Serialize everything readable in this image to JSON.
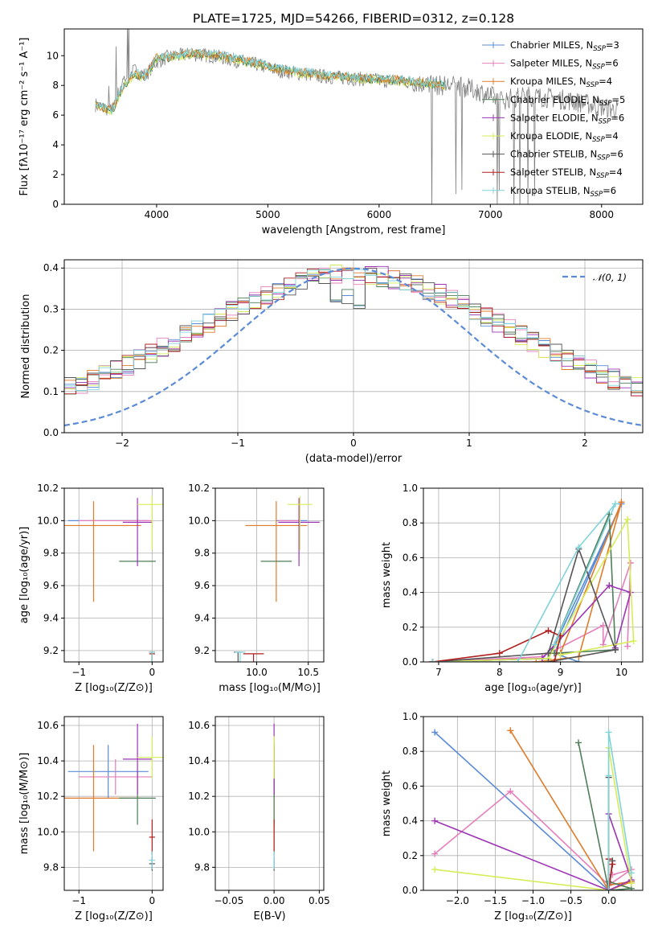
{
  "title": "PLATE=1725, MJD=54266, FIBERID=0312, z=0.128",
  "colors": {
    "Chabrier MILES": "#5b8bd6",
    "Salpeter MILES": "#e57fbc",
    "Kroupa MILES": "#e07b2a",
    "Chabrier ELODIE": "#4e7d57",
    "Salpeter ELODIE": "#9b35b4",
    "Kroupa ELODIE": "#d6ec59",
    "Chabrier STELIB": "#555555",
    "Salpeter STELIB": "#b01f1f",
    "Kroupa STELIB": "#7fd3d9",
    "data": "#808080",
    "normal": "#5b8bd6"
  },
  "chart_data": [
    {
      "id": "spectrum",
      "type": "line",
      "xlabel": "wavelength [Angstrom, rest frame]",
      "ylabel": "Flux [fλ10⁻¹⁷ erg cm⁻² s⁻¹ A⁻¹]",
      "xlim": [
        3170,
        8370
      ],
      "ylim": [
        0,
        11.8
      ],
      "xticks": [
        4000,
        5000,
        6000,
        7000,
        8000
      ],
      "yticks": [
        0,
        2,
        4,
        6,
        8,
        10
      ],
      "legend": "top-right",
      "legend_entries": [
        {
          "main": "Chabrier MILES, N",
          "sub": "SSP",
          "tail": "=3"
        },
        {
          "main": "Salpeter MILES, N",
          "sub": "SSP",
          "tail": "=6"
        },
        {
          "main": "Kroupa MILES, N",
          "sub": "SSP",
          "tail": "=4"
        },
        {
          "main": "Chabrier ELODIE, N",
          "sub": "SSP",
          "tail": "=5"
        },
        {
          "main": "Salpeter ELODIE, N",
          "sub": "SSP",
          "tail": "=6"
        },
        {
          "main": "Kroupa ELODIE, N",
          "sub": "SSP",
          "tail": "=4"
        },
        {
          "main": "Chabrier STELIB, N",
          "sub": "SSP",
          "tail": "=6"
        },
        {
          "main": "Salpeter STELIB, N",
          "sub": "SSP",
          "tail": "=4"
        },
        {
          "main": "Kroupa STELIB, N",
          "sub": "SSP",
          "tail": "=6"
        }
      ],
      "data_continuum": {
        "x": [
          3450,
          3600,
          3700,
          3800,
          3900,
          4000,
          4100,
          4300,
          4500,
          4700,
          4900,
          5100,
          5300,
          5500,
          5700,
          5900,
          6100,
          6300,
          6500,
          6700,
          6900,
          7100,
          7300,
          7500,
          7700,
          7900,
          8100
        ],
        "y": [
          6.7,
          6.3,
          8.4,
          9.0,
          8.7,
          9.6,
          9.9,
          10.1,
          10.0,
          9.7,
          9.4,
          9.0,
          8.8,
          8.6,
          8.5,
          8.4,
          8.3,
          8.2,
          8.0,
          8.0,
          7.6,
          7.0,
          7.3,
          7.2,
          7.0,
          6.7,
          6.4
        ]
      },
      "model_continuum": {
        "x": [
          3450,
          3600,
          3700,
          3800,
          3900,
          4000,
          4100,
          4300,
          4500,
          4700,
          4900,
          5100,
          5300,
          5500,
          5700,
          5900,
          6100,
          6300,
          6500,
          6600
        ],
        "y": [
          6.6,
          6.2,
          7.9,
          8.7,
          8.5,
          9.8,
          9.8,
          10.1,
          10.0,
          9.7,
          9.4,
          9.0,
          8.8,
          8.6,
          8.5,
          8.4,
          8.3,
          8.2,
          8.0,
          8.0
        ]
      }
    },
    {
      "id": "residuals",
      "type": "histogram",
      "xlabel": "(data-model)/error",
      "ylabel": "Normed distribution",
      "xlim": [
        -2.5,
        2.5
      ],
      "ylim": [
        0,
        0.42
      ],
      "xticks": [
        -2,
        -1,
        0,
        1,
        2
      ],
      "yticks": [
        0.0,
        0.1,
        0.2,
        0.3,
        0.4
      ],
      "legend": "top-right",
      "legend_label": "𝒩(0, 1)",
      "bin_width": 0.1
    },
    {
      "id": "age-vs-Z",
      "type": "scatter",
      "xlabel": "Z [log₁₀(Z/Z⊙)]",
      "ylabel": "age  [log₁₀(age/yr)]",
      "xlim": [
        -1.2,
        0.15
      ],
      "ylim": [
        9.13,
        10.2
      ],
      "xticks": [
        -1,
        0
      ],
      "yticks": [
        9.2,
        9.4,
        9.6,
        9.8,
        10.0,
        10.2
      ]
    },
    {
      "id": "age-vs-mass",
      "type": "scatter",
      "xlabel": "mass [log₁₀(M/M⊙)]",
      "xlim": [
        9.6,
        10.65
      ],
      "ylim": [
        9.13,
        10.2
      ],
      "xticks": [
        10.0,
        10.5
      ],
      "yticks": [
        9.2,
        9.4,
        9.6,
        9.8,
        10.0,
        10.2
      ]
    },
    {
      "id": "weight-vs-age",
      "type": "line",
      "xlabel": "age  [log₁₀(age/yr)]",
      "ylabel": "mass weight",
      "xlim": [
        6.75,
        10.35
      ],
      "ylim": [
        0,
        1.0
      ],
      "xticks": [
        7,
        8,
        9,
        10
      ],
      "yticks": [
        0.0,
        0.2,
        0.4,
        0.6,
        0.8,
        1.0
      ]
    },
    {
      "id": "mass-vs-Z",
      "type": "scatter",
      "xlabel": "Z [log₁₀(Z/Z⊙)]",
      "ylabel": "mass [log₁₀(M/M⊙)]",
      "xlim": [
        -1.2,
        0.15
      ],
      "ylim": [
        9.67,
        10.65
      ],
      "xticks": [
        -1,
        0
      ],
      "yticks": [
        9.8,
        10.0,
        10.2,
        10.4,
        10.6
      ]
    },
    {
      "id": "mass-vs-EBV",
      "type": "scatter",
      "xlabel": "E(B-V)",
      "xlim": [
        -0.065,
        0.055
      ],
      "ylim": [
        9.67,
        10.65
      ],
      "xticks": [
        -0.05,
        0.0,
        0.05
      ],
      "yticks": [
        9.8,
        10.0,
        10.2,
        10.4,
        10.6
      ]
    },
    {
      "id": "weight-vs-Z",
      "type": "line",
      "xlabel": "Z [log₁₀(Z/Z⊙)]",
      "ylabel": "mass weight",
      "xlim": [
        -2.45,
        0.45
      ],
      "ylim": [
        0,
        1.0
      ],
      "xticks": [
        -2.0,
        -1.5,
        -1.0,
        -0.5,
        0.0
      ],
      "yticks": [
        0.0,
        0.2,
        0.4,
        0.6,
        0.8,
        1.0
      ]
    }
  ],
  "fits": [
    {
      "name": "Chabrier MILES",
      "age": 10.0,
      "age_err": [
        0.0,
        0.0
      ],
      "Z": -0.6,
      "Z_err": 0.55,
      "mass": 10.34,
      "mass_err": 0.15,
      "ebv": 0.0,
      "age_w": [
        [
          6.9,
          0.0
        ],
        [
          8.8,
          0.02
        ],
        [
          10.0,
          0.91
        ],
        [
          8.9,
          0.05
        ],
        [
          9.3,
          0.0
        ]
      ],
      "Z_w": [
        [
          -2.3,
          0.91
        ],
        [
          0.0,
          0.0
        ],
        [
          0.3,
          0.05
        ],
        [
          0.0,
          0.03
        ]
      ]
    },
    {
      "name": "Salpeter MILES",
      "age": 10.0,
      "age_err": [
        0.0,
        0.0
      ],
      "Z": -0.5,
      "Z_err": 0.5,
      "mass": 10.31,
      "mass_err": 0.1,
      "ebv": 0.0,
      "age_w": [
        [
          6.9,
          0.0
        ],
        [
          8.7,
          0.03
        ],
        [
          9.7,
          0.21
        ],
        [
          9.7,
          0.1
        ],
        [
          10.15,
          0.57
        ],
        [
          10.1,
          0.09
        ]
      ],
      "Z_w": [
        [
          -2.3,
          0.21
        ],
        [
          -1.3,
          0.57
        ],
        [
          0.0,
          0.03
        ],
        [
          0.3,
          0.12
        ],
        [
          0.05,
          0.09
        ]
      ]
    },
    {
      "name": "Kroupa MILES",
      "age": 9.97,
      "age_err": [
        0.47,
        0.15
      ],
      "Z": -0.8,
      "Z_err": 0.65,
      "mass": 10.19,
      "mass_err": 0.3,
      "ebv": 0.0,
      "age_w": [
        [
          6.9,
          0.0
        ],
        [
          8.6,
          0.0
        ],
        [
          9.3,
          0.03
        ],
        [
          10.0,
          0.92
        ],
        [
          9.0,
          0.05
        ]
      ],
      "Z_w": [
        [
          -1.3,
          0.92
        ],
        [
          0.0,
          0.0
        ],
        [
          0.3,
          0.05
        ],
        [
          0.0,
          0.03
        ]
      ]
    },
    {
      "name": "Chabrier ELODIE",
      "age": 9.75,
      "age_err": [
        0.0,
        0.0
      ],
      "Z": -0.2,
      "Z_err": 0.25,
      "mass": 10.19,
      "mass_err": 0.15,
      "ebv": 0.0,
      "age_w": [
        [
          6.9,
          0.0
        ],
        [
          8.8,
          0.02
        ],
        [
          9.8,
          0.85
        ],
        [
          9.9,
          0.07
        ],
        [
          8.9,
          0.05
        ]
      ],
      "Z_w": [
        [
          -0.4,
          0.85
        ],
        [
          0.0,
          0.0
        ],
        [
          0.3,
          0.01
        ],
        [
          0.0,
          0.05
        ]
      ]
    },
    {
      "name": "Salpeter ELODIE",
      "age": 9.99,
      "age_err": [
        0.27,
        0.15
      ],
      "Z": -0.2,
      "Z_err": 0.2,
      "mass": 10.41,
      "mass_err": 0.2,
      "ebv": 0.0,
      "age_w": [
        [
          6.9,
          0.0
        ],
        [
          8.7,
          0.02
        ],
        [
          9.8,
          0.44
        ],
        [
          10.15,
          0.4
        ],
        [
          9.9,
          0.08
        ]
      ],
      "Z_w": [
        [
          -2.3,
          0.4
        ],
        [
          0.0,
          0.0
        ],
        [
          0.3,
          0.06
        ],
        [
          0.0,
          0.44
        ]
      ]
    },
    {
      "name": "Kroupa ELODIE",
      "age": 10.1,
      "age_err": [
        0.28,
        0.05
      ],
      "Z": 0.0,
      "Z_err": 0.2,
      "mass": 10.42,
      "mass_err": 0.12,
      "ebv": 0.0,
      "age_w": [
        [
          6.9,
          0.0
        ],
        [
          8.8,
          0.02
        ],
        [
          10.1,
          0.82
        ],
        [
          10.2,
          0.12
        ],
        [
          9.0,
          0.04
        ]
      ],
      "Z_w": [
        [
          -2.3,
          0.12
        ],
        [
          0.0,
          0.0
        ],
        [
          0.0,
          0.82
        ],
        [
          0.3,
          0.04
        ]
      ]
    },
    {
      "name": "Chabrier STELIB",
      "age": 9.19,
      "age_err": [
        0.35,
        0.0
      ],
      "Z": 0.0,
      "Z_err": 0.04,
      "mass": 9.82,
      "mass_err": 0.04,
      "ebv": 0.0,
      "age_w": [
        [
          6.9,
          0.0
        ],
        [
          8.8,
          0.05
        ],
        [
          9.3,
          0.65
        ],
        [
          9.9,
          0.07
        ],
        [
          8.8,
          0.0
        ]
      ],
      "Z_w": [
        [
          0.0,
          0.65
        ],
        [
          0.0,
          0.0
        ],
        [
          0.05,
          0.17
        ]
      ]
    },
    {
      "name": "Salpeter STELIB",
      "age": 9.18,
      "age_err": [
        0.33,
        0.0
      ],
      "Z": 0.0,
      "Z_err": 0.04,
      "mass": 9.97,
      "mass_err": 0.1,
      "ebv": 0.0,
      "age_w": [
        [
          6.9,
          0.0
        ],
        [
          8.0,
          0.05
        ],
        [
          8.8,
          0.18
        ],
        [
          9.0,
          0.15
        ],
        [
          8.9,
          0.0
        ]
      ],
      "Z_w": [
        [
          0.0,
          0.18
        ],
        [
          0.0,
          0.0
        ],
        [
          0.05,
          0.15
        ]
      ]
    },
    {
      "name": "Kroupa STELIB",
      "age": 9.19,
      "age_err": [
        0.36,
        0.0
      ],
      "Z": 0.0,
      "Z_err": 0.04,
      "mass": 9.84,
      "mass_err": 0.05,
      "ebv": 0.0,
      "age_w": [
        [
          6.9,
          0.0
        ],
        [
          8.3,
          0.0
        ],
        [
          9.3,
          0.66
        ],
        [
          9.9,
          0.91
        ],
        [
          8.9,
          0.1
        ]
      ],
      "Z_w": [
        [
          0.0,
          0.66
        ],
        [
          0.0,
          0.0
        ],
        [
          0.0,
          0.91
        ],
        [
          0.3,
          0.1
        ]
      ]
    }
  ]
}
